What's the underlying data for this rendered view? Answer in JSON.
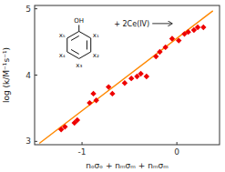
{
  "chart_data": {
    "type": "scatter",
    "xlabel": "nₒσₒ + nₘσₘ + nₘσₘ",
    "ylabel": "log (k/M⁻¹s⁻¹)",
    "xlim": [
      -1.5,
      0.45
    ],
    "ylim": [
      2.95,
      5.05
    ],
    "xticks": [
      -1,
      0
    ],
    "yticks": [
      3,
      4,
      5
    ],
    "grid": false,
    "series": [
      {
        "type": "line",
        "color": "#ff8800",
        "x": [
          -1.45,
          0.38
        ],
        "values": [
          2.97,
          4.97
        ]
      },
      {
        "type": "scatter",
        "color": "#ee0000",
        "marker": "diamond",
        "x": [
          -1.22,
          -1.18,
          -1.08,
          -1.05,
          -0.92,
          -0.88,
          -0.85,
          -0.72,
          -0.68,
          -0.55,
          -0.48,
          -0.42,
          -0.38,
          -0.32,
          -0.22,
          -0.18,
          -0.12,
          -0.05,
          0.02,
          0.08,
          0.12,
          0.18,
          0.22,
          0.28
        ],
        "values": [
          3.18,
          3.22,
          3.28,
          3.32,
          3.58,
          3.72,
          3.62,
          3.82,
          3.72,
          3.88,
          3.95,
          3.98,
          4.02,
          3.98,
          4.28,
          4.35,
          4.42,
          4.55,
          4.52,
          4.62,
          4.65,
          4.68,
          4.72,
          4.72
        ]
      }
    ],
    "annotations": [
      "+ 2Ce(IV)",
      "OH",
      "x₁",
      "x₂",
      "x₃",
      "x₄",
      "x₅"
    ]
  }
}
